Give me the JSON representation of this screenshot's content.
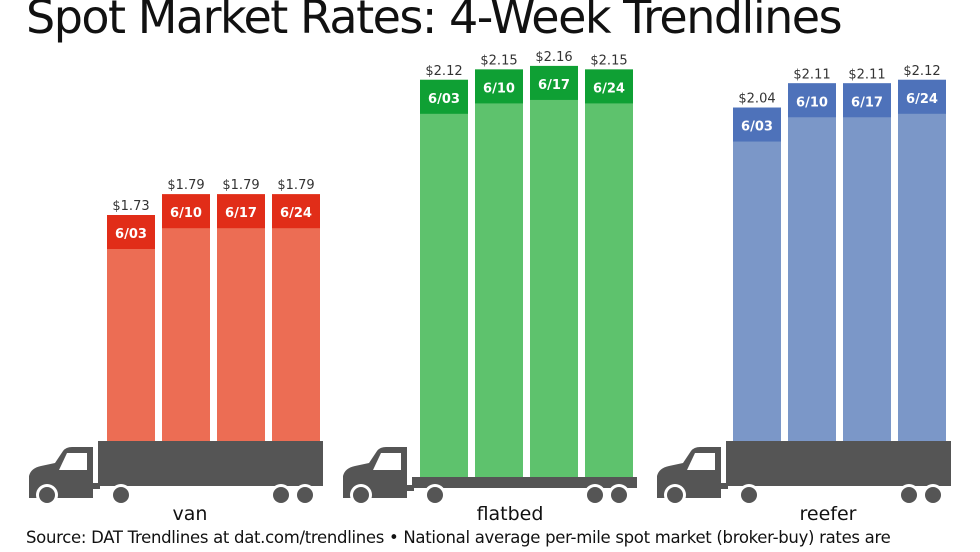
{
  "title": "Spot Market Rates: 4-Week Trendlines",
  "source": "Source: DAT Trendlines at dat.com/trendlines • National average per-mile spot market (broker-buy) rates are",
  "colors": {
    "van": "#ec6d54",
    "van_label": "#e12d18",
    "flatbed": "#5ec26d",
    "flatbed_label": "#0fa034",
    "reefer": "#7b97c8",
    "reefer_label": "#4e72ba",
    "truck": "#555555"
  },
  "chart_data": {
    "type": "bar",
    "title": "Spot Market Rates: 4-Week Trendlines",
    "categories": [
      "6/03",
      "6/10",
      "6/17",
      "6/24"
    ],
    "series": [
      {
        "name": "van",
        "values": [
          1.73,
          1.79,
          1.79,
          1.79
        ],
        "price_labels": [
          "$1.73",
          "$1.79",
          "$1.79",
          "$1.79"
        ]
      },
      {
        "name": "flatbed",
        "values": [
          2.12,
          2.15,
          2.16,
          2.15
        ],
        "price_labels": [
          "$2.12",
          "$2.15",
          "$2.16",
          "$2.15"
        ]
      },
      {
        "name": "reefer",
        "values": [
          2.04,
          2.11,
          2.11,
          2.12
        ],
        "price_labels": [
          "$2.04",
          "$2.11",
          "$2.11",
          "$2.12"
        ]
      }
    ],
    "grid": false,
    "legend": "none"
  }
}
